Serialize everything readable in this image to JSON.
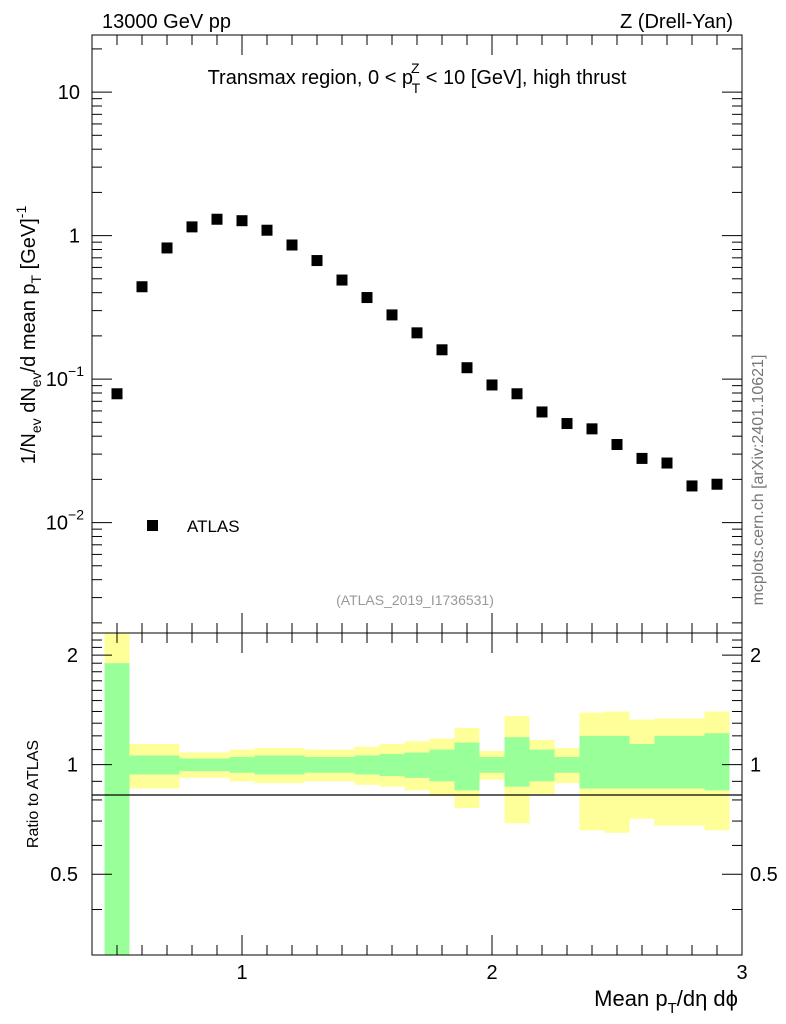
{
  "chart_data": {
    "type": "scatter",
    "header_left": "13000 GeV pp",
    "header_right": "Z (Drell-Yan)",
    "title_parts": {
      "pre": "Transmax region, 0 < p",
      "sup": "Z",
      "sub": "T",
      "post": " < 10 [GeV], high thrust"
    },
    "ylabel_parts": {
      "a": "1/N",
      "a_sub": "ev",
      "b": " dN",
      "b_sub": "ev",
      "c": "/d mean p",
      "c_sub": "T",
      "d": " [GeV]",
      "d_sup": "-1"
    },
    "xlabel_parts": {
      "a": "Mean p",
      "a_sub": "T",
      "b": "/dη dϕ"
    },
    "ratio_ylabel": "Ratio to ATLAS",
    "analysis_label": "(ATLAS_2019_I1736531)",
    "side_label": "mcplots.cern.ch [arXiv:2401.10621]",
    "legend": {
      "label": "ATLAS",
      "position": "bottom-left"
    },
    "main_ticks": {
      "labels": [
        "10",
        "1",
        "10",
        "10"
      ],
      "exponents": [
        "",
        "",
        "−1",
        "−2"
      ],
      "values": [
        10,
        1,
        0.1,
        0.01
      ]
    },
    "xlim": [
      0.4,
      3.0
    ],
    "ylim": [
      0.0017,
      25
    ],
    "x_ticks": {
      "labels": [
        "1",
        "2",
        "3"
      ],
      "values": [
        1,
        2,
        3
      ]
    },
    "ratio_ylim": [
      0.3,
      2.3
    ],
    "ratio_ticks": {
      "labels": [
        "2",
        "1",
        "0.5"
      ],
      "values": [
        2,
        1,
        0.5
      ]
    },
    "series": [
      {
        "name": "ATLAS",
        "x": [
          0.5,
          0.6,
          0.7,
          0.8,
          0.9,
          1.0,
          1.1,
          1.2,
          1.3,
          1.4,
          1.5,
          1.6,
          1.7,
          1.8,
          1.9,
          2.0,
          2.1,
          2.2,
          2.3,
          2.4,
          2.5,
          2.6,
          2.7,
          2.8,
          2.9
        ],
        "y": [
          0.079,
          0.44,
          0.82,
          1.15,
          1.3,
          1.27,
          1.09,
          0.86,
          0.67,
          0.49,
          0.37,
          0.28,
          0.21,
          0.16,
          0.12,
          0.091,
          0.079,
          0.059,
          0.049,
          0.045,
          0.035,
          0.028,
          0.026,
          0.018,
          0.0185
        ]
      }
    ],
    "ratio_bands": {
      "edges": [
        0.45,
        0.55,
        0.75,
        0.95,
        1.05,
        1.15,
        1.25,
        1.45,
        1.55,
        1.65,
        1.75,
        1.85,
        1.95,
        2.05,
        2.15,
        2.25,
        2.35,
        2.45,
        2.55,
        2.65,
        2.75,
        2.85,
        2.95
      ],
      "green_upper": [
        1.9,
        1.06,
        1.04,
        1.05,
        1.06,
        1.06,
        1.05,
        1.06,
        1.07,
        1.08,
        1.1,
        1.15,
        1.05,
        1.19,
        1.1,
        1.05,
        1.2,
        1.2,
        1.14,
        1.2,
        1.2,
        1.22
      ],
      "green_lower": [
        0.3,
        0.94,
        0.96,
        0.95,
        0.94,
        0.94,
        0.95,
        0.94,
        0.93,
        0.92,
        0.9,
        0.85,
        0.95,
        0.87,
        0.9,
        0.95,
        0.86,
        0.86,
        0.86,
        0.86,
        0.86,
        0.85
      ],
      "yellow_upper": [
        2.3,
        1.14,
        1.08,
        1.1,
        1.11,
        1.11,
        1.1,
        1.12,
        1.14,
        1.16,
        1.18,
        1.26,
        1.09,
        1.36,
        1.17,
        1.11,
        1.39,
        1.4,
        1.33,
        1.34,
        1.34,
        1.4
      ],
      "yellow_lower": [
        0.3,
        0.86,
        0.92,
        0.9,
        0.89,
        0.89,
        0.9,
        0.88,
        0.87,
        0.85,
        0.82,
        0.76,
        0.91,
        0.69,
        0.83,
        0.89,
        0.66,
        0.65,
        0.71,
        0.68,
        0.68,
        0.66
      ]
    },
    "colors": {
      "green": "#99ff99",
      "yellow": "#ffff99",
      "marker": "#000000",
      "grey_text": "#999999",
      "side_text": "#777777"
    }
  }
}
